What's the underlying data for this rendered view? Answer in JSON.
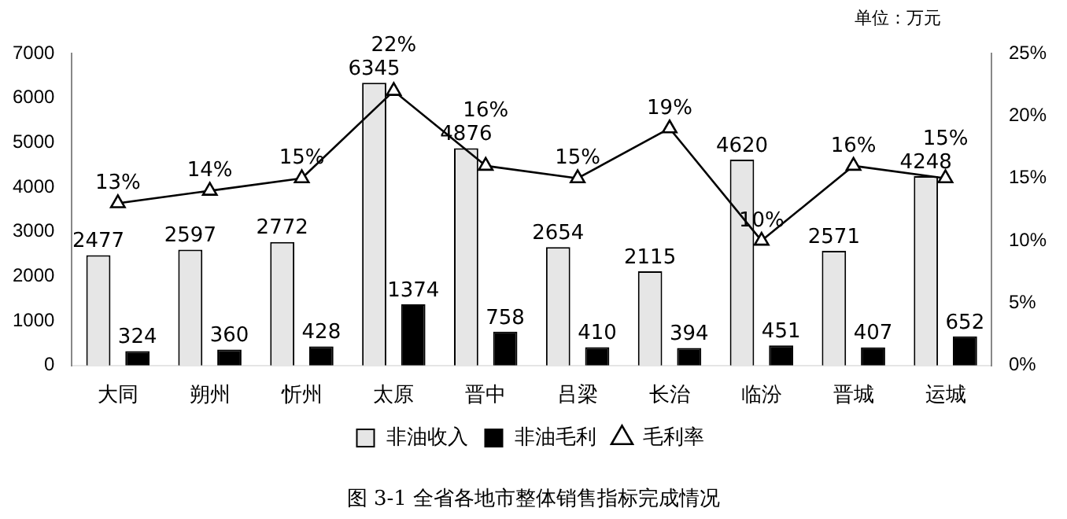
{
  "chart_data": {
    "type": "bar",
    "categories": [
      "大同",
      "朔州",
      "忻州",
      "太原",
      "晋中",
      "吕梁",
      "长治",
      "临汾",
      "晋城",
      "运城"
    ],
    "series": [
      {
        "name": "非油收入",
        "color": "#e6e6e6",
        "values": [
          2477,
          2597,
          2772,
          6345,
          4876,
          2654,
          2115,
          4620,
          2571,
          4248
        ],
        "value_labels": [
          "2477",
          "2597",
          "2772",
          "6345",
          "4876",
          "2654",
          "2115",
          "4620",
          "2571",
          "4248"
        ]
      },
      {
        "name": "非油毛利",
        "color": "#000000",
        "values": [
          324,
          360,
          428,
          1374,
          758,
          410,
          394,
          451,
          407,
          652
        ],
        "value_labels": [
          "324",
          "360",
          "428",
          "1374",
          "758",
          "410",
          "394",
          "451",
          "407",
          "652"
        ]
      },
      {
        "name": "毛利率",
        "type": "line",
        "axis": "y2",
        "color": "#000000",
        "marker": "triangle",
        "values": [
          13,
          14,
          15,
          22,
          16,
          15,
          19,
          10,
          16,
          15
        ],
        "value_labels": [
          "13%",
          "14%",
          "15%",
          "22%",
          "16%",
          "15%",
          "19%",
          "10%",
          "16%",
          "15%"
        ]
      }
    ],
    "ylim": [
      0,
      7000
    ],
    "yticks": [
      0,
      1000,
      2000,
      3000,
      4000,
      5000,
      6000,
      7000
    ],
    "y2lim": [
      0,
      25
    ],
    "y2ticks": [
      {
        "value": 0,
        "label": "0%"
      },
      {
        "value": 5,
        "label": "5%"
      },
      {
        "value": 10,
        "label": "10%"
      },
      {
        "value": 15,
        "label": "15%"
      },
      {
        "value": 20,
        "label": "20%"
      },
      {
        "value": 25,
        "label": "25%"
      }
    ],
    "grid": false,
    "legend": "bottom",
    "annotations": [
      "单位：万元",
      "图 3-1 全省各地市整体销售指标完成情况"
    ]
  }
}
